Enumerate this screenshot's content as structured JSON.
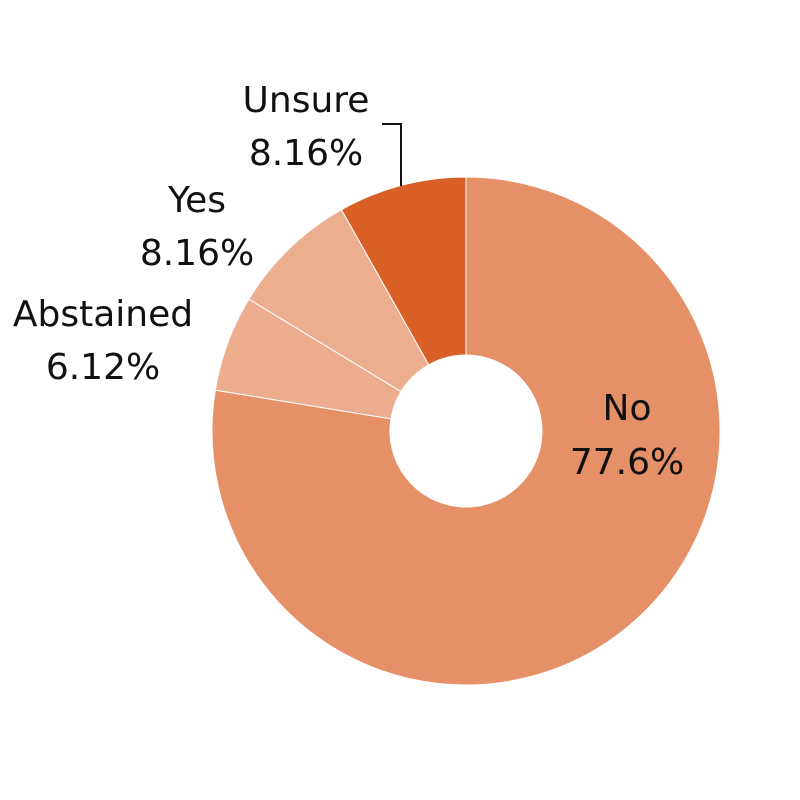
{
  "chart_data": {
    "type": "pie",
    "variant": "donut",
    "start_angle": "12 o'clock, clockwise",
    "slices": [
      {
        "label": "No",
        "value": 77.6,
        "value_text": "77.6%",
        "color": "#E69067"
      },
      {
        "label": "Abstained",
        "value": 6.12,
        "value_text": "6.12%",
        "color": "#EDAC8E"
      },
      {
        "label": "Yes",
        "value": 8.16,
        "value_text": "8.16%",
        "color": "#EDAD8F"
      },
      {
        "label": "Unsure",
        "value": 8.16,
        "value_text": "8.16%",
        "color": "#D86026"
      }
    ]
  }
}
